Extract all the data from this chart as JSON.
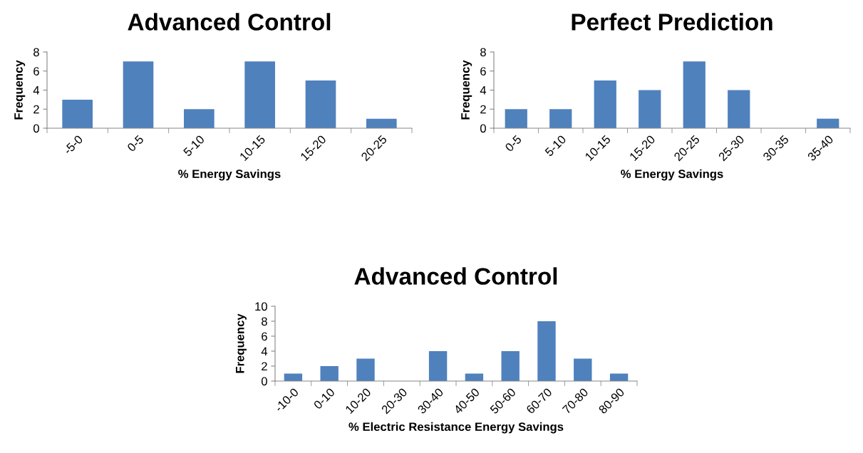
{
  "chart_data": [
    {
      "type": "bar",
      "title": "Advanced Control",
      "xlabel": "% Energy Savings",
      "ylabel": "Frequency",
      "categories": [
        "-5-0",
        "0-5",
        "5-10",
        "10-15",
        "15-20",
        "20-25"
      ],
      "values": [
        3,
        7,
        2,
        7,
        5,
        1
      ],
      "color": "#4f81bd",
      "ylim": [
        0,
        8
      ],
      "yticks": [
        0,
        2,
        4,
        6,
        8
      ],
      "grid": false,
      "legend": false
    },
    {
      "type": "bar",
      "title": "Perfect Prediction",
      "xlabel": "% Energy Savings",
      "ylabel": "Frequency",
      "categories": [
        "0-5",
        "5-10",
        "10-15",
        "15-20",
        "20-25",
        "25-30",
        "30-35",
        "35-40"
      ],
      "values": [
        2,
        2,
        5,
        4,
        7,
        4,
        0,
        1
      ],
      "color": "#4f81bd",
      "ylim": [
        0,
        8
      ],
      "yticks": [
        0,
        2,
        4,
        6,
        8
      ],
      "grid": false,
      "legend": false
    },
    {
      "type": "bar",
      "title": "Advanced Control",
      "xlabel": "% Electric Resistance Energy Savings",
      "ylabel": "Frequency",
      "categories": [
        "-10-0",
        "0-10",
        "10-20",
        "20-30",
        "30-40",
        "40-50",
        "50-60",
        "60-70",
        "70-80",
        "80-90"
      ],
      "values": [
        1,
        2,
        3,
        0,
        4,
        1,
        4,
        8,
        3,
        1
      ],
      "color": "#4f81bd",
      "ylim": [
        0,
        10
      ],
      "yticks": [
        0,
        2,
        4,
        6,
        8,
        10
      ],
      "grid": false,
      "legend": false
    }
  ]
}
